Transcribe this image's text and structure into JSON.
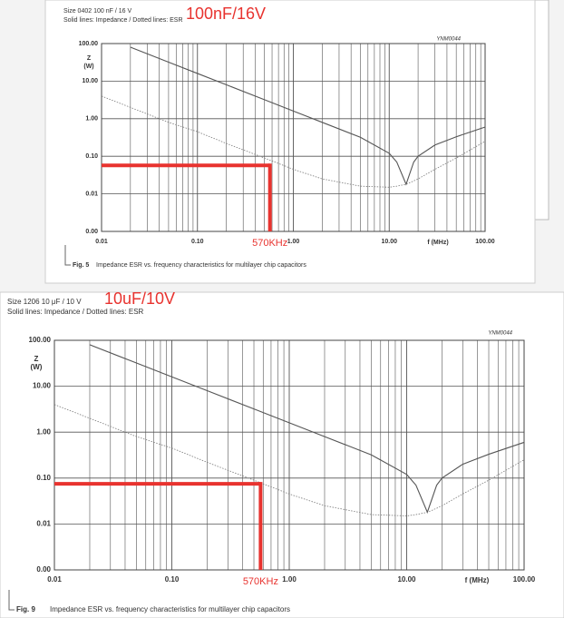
{
  "chart_data": [
    {
      "type": "line",
      "title": "Size 0402 100 nF / 16 V",
      "subtitle": "Solid lines: Impedance / Dotted lines: ESR",
      "annotation": "100nF/16V",
      "code": "YNM0044",
      "ylabel": "Z",
      "yunit": "(W)",
      "xlabel": "f (MHz)",
      "figure": "Fig. 5",
      "caption": "Impedance ESR vs. frequency characteristics for multilayer chip capacitors",
      "xlog": true,
      "ylog": true,
      "grid": true,
      "minor_grid": true,
      "xlim": [
        0.01,
        100
      ],
      "ylim": [
        0.001,
        100
      ],
      "xticks": [
        {
          "value": 0.01,
          "label": "0.01"
        },
        {
          "value": 0.1,
          "label": "0.10"
        },
        {
          "value": 1,
          "label": "1.00"
        },
        {
          "value": 10,
          "label": "10.00"
        },
        {
          "value": 100,
          "label": "100.00"
        }
      ],
      "yticks": [
        {
          "value": 0.001,
          "label": "0.00"
        },
        {
          "value": 0.01,
          "label": "0.01"
        },
        {
          "value": 0.1,
          "label": "0.10"
        },
        {
          "value": 1,
          "label": "1.00"
        },
        {
          "value": 10,
          "label": "10.00"
        },
        {
          "value": 100,
          "label": "100.00"
        }
      ],
      "x": [
        0.01,
        0.02,
        0.05,
        0.1,
        0.2,
        0.5,
        1,
        2,
        5,
        10,
        12,
        15,
        18,
        20,
        30,
        50,
        100
      ],
      "series": [
        {
          "color": "#555555",
          "dotted": false,
          "values": [
            null,
            80,
            32,
            16,
            8,
            3.2,
            1.6,
            0.8,
            0.32,
            0.12,
            0.07,
            0.018,
            0.07,
            0.1,
            0.2,
            0.33,
            0.6
          ]
        },
        {
          "color": "#777777",
          "dotted": true,
          "values": [
            4,
            2,
            0.8,
            0.45,
            0.22,
            0.09,
            0.045,
            0.025,
            0.016,
            0.015,
            0.016,
            0.018,
            0.022,
            0.025,
            0.045,
            0.09,
            0.25
          ]
        }
      ],
      "marker": {
        "x": 0.57,
        "y": 0.057,
        "label": "570KHz",
        "color": "#e8332f"
      }
    },
    {
      "type": "line",
      "title": "Size 1206 10 μF / 10 V",
      "subtitle": "Solid lines: Impedance / Dotted lines: ESR",
      "annotation": "10uF/10V",
      "code": "YNM0044",
      "ylabel": "Z",
      "yunit": "(W)",
      "xlabel": "f (MHz)",
      "figure": "Fig. 9",
      "caption": "Impedance ESR vs. frequency characteristics for multilayer chip capacitors",
      "xlog": true,
      "ylog": true,
      "grid": true,
      "minor_grid": true,
      "xlim": [
        0.01,
        100
      ],
      "ylim": [
        0.001,
        100
      ],
      "xticks": [
        {
          "value": 0.01,
          "label": "0.01"
        },
        {
          "value": 0.1,
          "label": "0.10"
        },
        {
          "value": 1,
          "label": "1.00"
        },
        {
          "value": 10,
          "label": "10.00"
        },
        {
          "value": 100,
          "label": "100.00"
        }
      ],
      "yticks": [
        {
          "value": 0.001,
          "label": "0.00"
        },
        {
          "value": 0.01,
          "label": "0.01"
        },
        {
          "value": 0.1,
          "label": "0.10"
        },
        {
          "value": 1,
          "label": "1.00"
        },
        {
          "value": 10,
          "label": "10.00"
        },
        {
          "value": 100,
          "label": "100.00"
        }
      ],
      "x": [
        0.01,
        0.02,
        0.05,
        0.1,
        0.2,
        0.5,
        1,
        2,
        5,
        10,
        12,
        15,
        18,
        20,
        30,
        50,
        100
      ],
      "series": [
        {
          "color": "#555555",
          "dotted": false,
          "values": [
            null,
            80,
            32,
            16,
            8,
            3.2,
            1.6,
            0.8,
            0.32,
            0.12,
            0.07,
            0.018,
            0.07,
            0.1,
            0.2,
            0.33,
            0.6
          ]
        },
        {
          "color": "#777777",
          "dotted": true,
          "values": [
            4,
            2,
            0.8,
            0.45,
            0.22,
            0.09,
            0.045,
            0.025,
            0.016,
            0.015,
            0.016,
            0.018,
            0.022,
            0.025,
            0.045,
            0.09,
            0.25
          ]
        }
      ],
      "marker": {
        "x": 0.57,
        "y": 0.075,
        "label": "570KHz",
        "color": "#e8332f"
      }
    }
  ]
}
